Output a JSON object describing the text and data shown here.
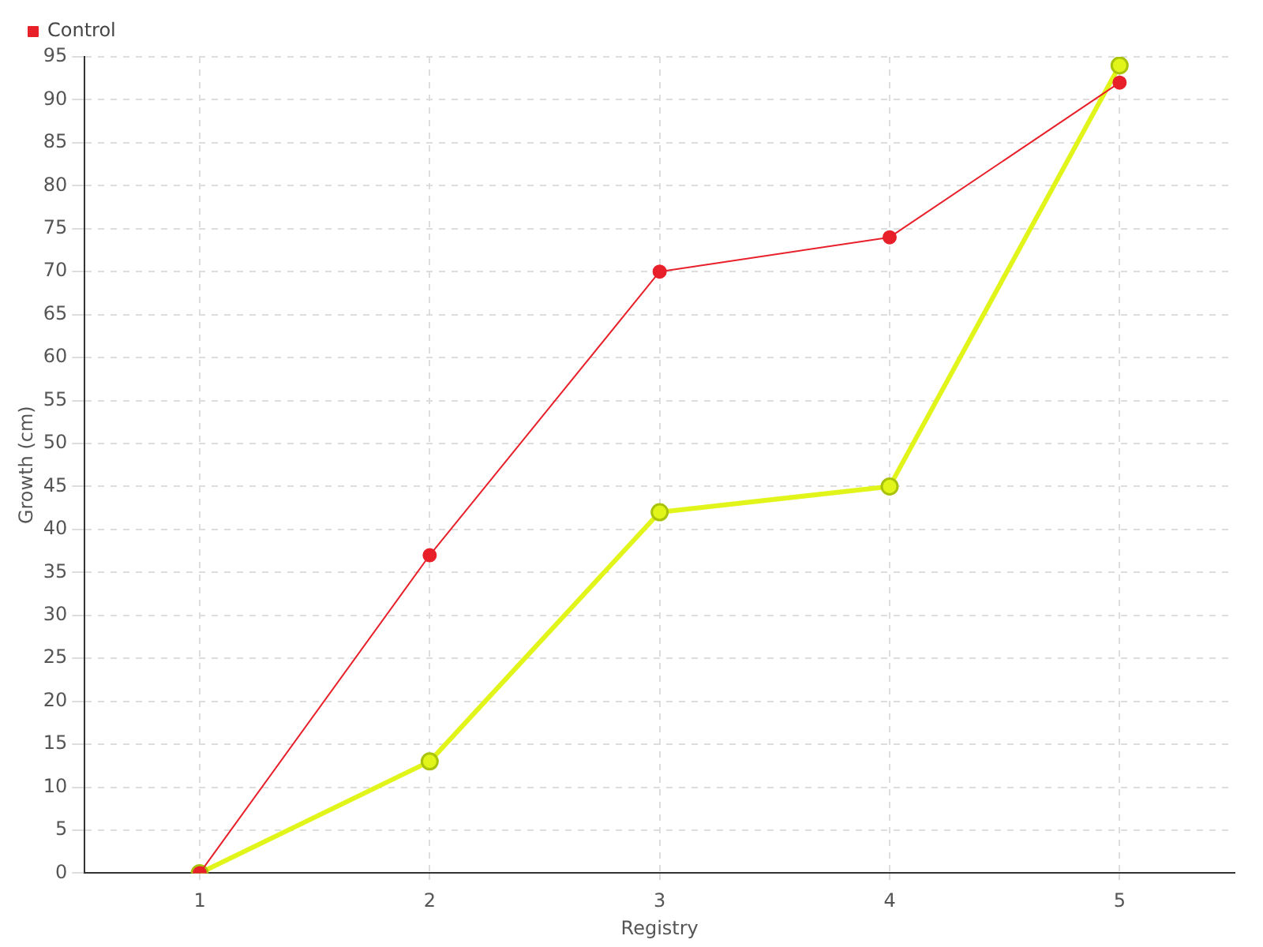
{
  "chart_data": {
    "type": "line",
    "xlabel": "Registry",
    "ylabel": "Growth (cm)",
    "categories": [
      "1",
      "2",
      "3",
      "4",
      "5"
    ],
    "series": [
      {
        "color": "#e1f51a",
        "values": [
          0,
          13,
          42,
          45,
          94
        ]
      },
      {
        "name": "Control",
        "color": "#e8202a",
        "values": [
          0,
          37,
          70,
          74,
          92
        ]
      }
    ],
    "ylim": [
      0,
      95
    ],
    "yticks": [
      0,
      5,
      10,
      15,
      20,
      25,
      30,
      35,
      40,
      45,
      50,
      55,
      60,
      65,
      70,
      75,
      80,
      85,
      90,
      95
    ],
    "grid": true,
    "legend": "top left",
    "marker": "circle",
    "line_style": "solid"
  }
}
